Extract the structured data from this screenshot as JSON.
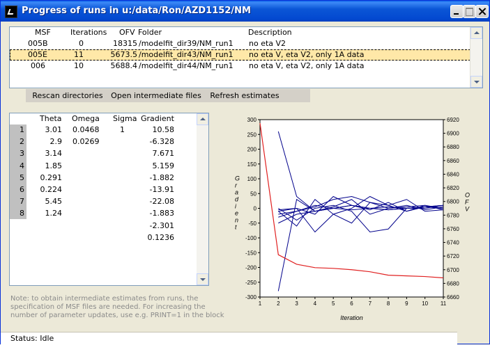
{
  "window": {
    "title": "Progress of runs in u:/data/Ron/AZD1152/NM"
  },
  "runs_table": {
    "headers": {
      "msf": "MSF",
      "iterations": "Iterations",
      "ofv": "OFV",
      "folder": "Folder",
      "description": "Description"
    },
    "rows": [
      {
        "msf": "005B",
        "iterations": "0",
        "ofv": "18315",
        "folder": "/modelfit_dir39/NM_run1",
        "description": "no eta V2"
      },
      {
        "msf": "005E",
        "iterations": "11",
        "ofv": "5673.5",
        "folder": "/modelfit_dir43/NM_run1",
        "description": "no eta V, eta V2, only 1A data"
      },
      {
        "msf": "006",
        "iterations": "10",
        "ofv": "5688.4",
        "folder": "/modelfit_dir44/NM_run1",
        "description": "no eta V, eta V2, only 1A data"
      }
    ]
  },
  "toolbar": {
    "rescan_label": "Rescan directories",
    "open_label": "Open intermediate files",
    "refresh_label": "Refresh estimates"
  },
  "estimates": {
    "headers": {
      "theta": "Theta",
      "omega": "Omega",
      "sigma": "Sigma",
      "gradient": "Gradient"
    },
    "row_numbers": [
      "1",
      "2",
      "3",
      "4",
      "5",
      "6",
      "7",
      "8"
    ],
    "theta": [
      "3.01",
      "2.9",
      "3.14",
      "1.85",
      "0.291",
      "0.224",
      "5.45",
      "1.24"
    ],
    "omega": [
      "0.0468",
      "0.0269"
    ],
    "sigma": [
      "1"
    ],
    "gradient": [
      "10.58",
      "-6.328",
      "7.671",
      "5.159",
      "-1.882",
      "-13.91",
      "-22.08",
      "-1.883",
      "-2.301",
      "0.1236"
    ]
  },
  "note": "Note: to obtain intermediate estimates from runs, the specification of MSF files are needed. For increasing the number of parameter updates, use e.g. PRINT=1 in the  block.",
  "status": {
    "text": "Status: Idle"
  },
  "chart_data": {
    "type": "line",
    "xlabel": "Iteration",
    "ylabel": "Gradient",
    "y2label": "OFV",
    "x": [
      1,
      2,
      3,
      4,
      5,
      6,
      7,
      8,
      9,
      10,
      11
    ],
    "xlim": [
      1,
      11
    ],
    "ylim": [
      -300,
      300
    ],
    "y2lim": [
      6660,
      6920
    ],
    "yticks": [
      300,
      250,
      200,
      150,
      100,
      50,
      0,
      -50,
      -100,
      -150,
      -200,
      -250,
      -300
    ],
    "y2ticks": [
      6920,
      6900,
      6880,
      6860,
      6840,
      6820,
      6800,
      6780,
      6760,
      6740,
      6720,
      6700,
      6680,
      6660
    ],
    "gradient_color": "#00008b",
    "ofv_color": "#e02020",
    "ofv_series": {
      "axis": "right",
      "values": [
        6915,
        6722,
        6708,
        6703,
        6702,
        6700,
        6697,
        6692,
        6691,
        6690,
        6688
      ]
    },
    "gradient_series": [
      {
        "values": [
          null,
          260,
          40,
          -10,
          0,
          10,
          0,
          -5,
          0,
          5,
          10
        ]
      },
      {
        "values": [
          null,
          -280,
          30,
          -10,
          0,
          10,
          0,
          -5,
          0,
          5,
          10
        ]
      },
      {
        "values": [
          null,
          -20,
          -10,
          10,
          0,
          -5,
          0,
          5,
          0,
          5,
          0
        ]
      },
      {
        "values": [
          null,
          -10,
          0,
          -20,
          40,
          10,
          -5,
          20,
          -10,
          5,
          0
        ]
      },
      {
        "values": [
          null,
          -30,
          -10,
          5,
          30,
          40,
          20,
          0,
          10,
          -5,
          5
        ]
      },
      {
        "values": [
          null,
          -50,
          -20,
          -10,
          5,
          30,
          -20,
          0,
          5,
          10,
          0
        ]
      },
      {
        "values": [
          null,
          -10,
          -60,
          30,
          -20,
          -50,
          20,
          10,
          -10,
          10,
          -5
        ]
      },
      {
        "values": [
          null,
          0,
          -40,
          0,
          10,
          -10,
          -80,
          -70,
          0,
          0,
          10
        ]
      },
      {
        "values": [
          null,
          -5,
          0,
          -80,
          -20,
          0,
          40,
          10,
          30,
          -10,
          -5
        ]
      }
    ]
  },
  "colors": {
    "titlebar": "#0b56d6",
    "selected_row": "#ffe8a8",
    "toolbar_bg": "#d4d0c8"
  }
}
